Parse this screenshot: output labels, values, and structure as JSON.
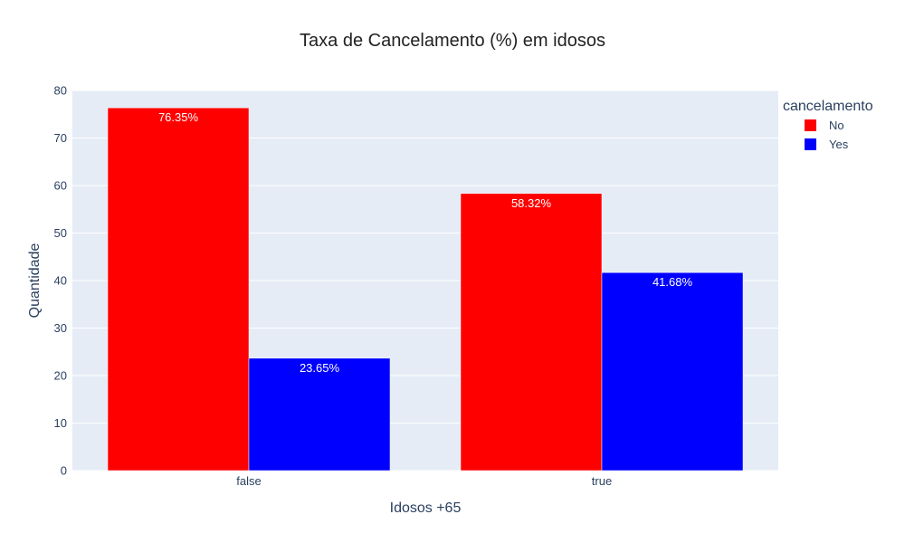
{
  "chart_data": {
    "type": "bar",
    "title": "Taxa de Cancelamento (%) em idosos",
    "xlabel": "Idosos +65",
    "ylabel": "Quantidade",
    "categories": [
      "false",
      "true"
    ],
    "ylim": [
      0,
      80
    ],
    "yticks": [
      0,
      10,
      20,
      30,
      40,
      50,
      60,
      70,
      80
    ],
    "grid": true,
    "legend": {
      "title": "cancelamento",
      "position": "top-right"
    },
    "series": [
      {
        "name": "No",
        "color": "#ff0000",
        "values": [
          76.35,
          58.32
        ],
        "labels": [
          "76.35%",
          "58.32%"
        ]
      },
      {
        "name": "Yes",
        "color": "#0000ff",
        "values": [
          23.65,
          41.68
        ],
        "labels": [
          "23.65%",
          "41.68%"
        ]
      }
    ],
    "plot_background": "#e5ecf6"
  }
}
